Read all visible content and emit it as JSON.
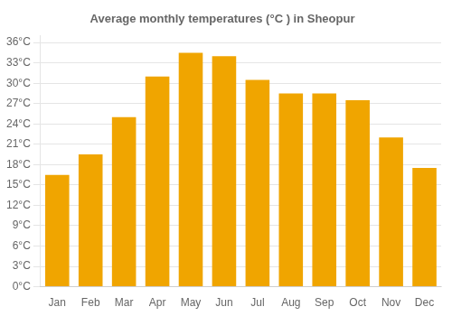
{
  "chart_data": {
    "type": "bar",
    "title": "Average monthly temperatures (°C ) in Sheopur",
    "categories": [
      "Jan",
      "Feb",
      "Mar",
      "Apr",
      "May",
      "Jun",
      "Jul",
      "Aug",
      "Sep",
      "Oct",
      "Nov",
      "Dec"
    ],
    "values": [
      16.5,
      19.5,
      25.0,
      31.0,
      34.5,
      34.0,
      30.5,
      28.5,
      28.5,
      27.5,
      22.0,
      17.5
    ],
    "color": "#F0A500",
    "ylim": [
      0,
      37
    ],
    "yticks": [
      {
        "value": 0,
        "label": "0°C"
      },
      {
        "value": 3,
        "label": "3°C"
      },
      {
        "value": 6,
        "label": "6°C"
      },
      {
        "value": 9,
        "label": "9°C"
      },
      {
        "value": 12,
        "label": "12°C"
      },
      {
        "value": 15,
        "label": "15°C"
      },
      {
        "value": 18,
        "label": "18°C"
      },
      {
        "value": 21,
        "label": "21°C"
      },
      {
        "value": 24,
        "label": "24°C"
      },
      {
        "value": 27,
        "label": "27°C"
      },
      {
        "value": 30,
        "label": "30°C"
      },
      {
        "value": 33,
        "label": "33°C"
      },
      {
        "value": 36,
        "label": "36°C"
      }
    ],
    "grid": true
  }
}
